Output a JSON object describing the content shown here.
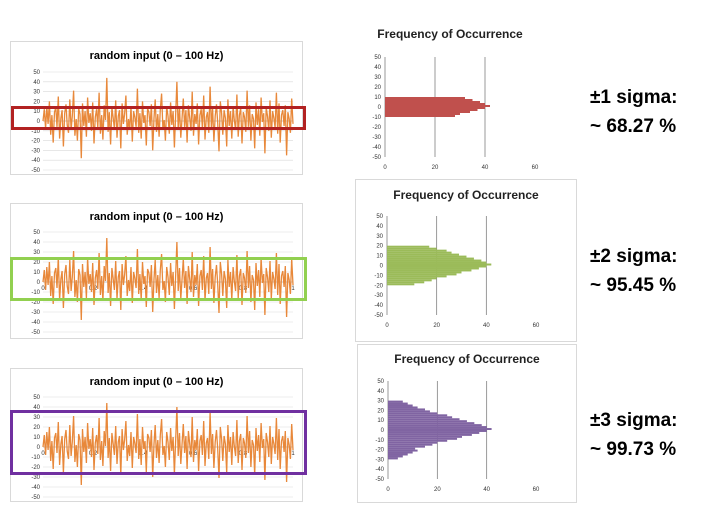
{
  "rows": [
    {
      "id": "r1",
      "sigma_line1": "±1 sigma:",
      "sigma_line2": "~ 68.27 %",
      "highlight_color": "#b22222",
      "hist_color": "#c0504d",
      "band": [
        -10,
        10
      ],
      "ts_xticks": [],
      "hist_title_y": 27
    },
    {
      "id": "r2",
      "sigma_line1": "±2 sigma:",
      "sigma_line2": "~ 95.45 %",
      "highlight_color": "#92d050",
      "hist_color": "#9bbb59",
      "band": [
        -20,
        20
      ],
      "ts_xticks": [
        "0",
        "0.2",
        "0.4",
        "0.6",
        "0.8",
        "1"
      ],
      "hist_title_y": 8
    },
    {
      "id": "r3",
      "sigma_line1": "±3 sigma:",
      "sigma_line2": "~ 99.73 %",
      "highlight_color": "#7030a0",
      "hist_color": "#8064a2",
      "band": [
        -30,
        30
      ],
      "ts_xticks": [
        "0",
        "0.2",
        "0.4",
        "0.6",
        "0.8",
        "1"
      ],
      "hist_title_y": 7
    }
  ],
  "ts_title": "random input (0 – 100 Hz)",
  "hist_title": "Frequency of Occurrence",
  "ts_color": "#e8883a",
  "chart_data": [
    {
      "type": "line",
      "title": "random input (0 – 100 Hz)",
      "xlim": [
        0,
        1
      ],
      "ylim": [
        -50,
        50
      ],
      "yticks": [
        50,
        40,
        30,
        20,
        10,
        0,
        -10,
        -20,
        -30,
        -40,
        -50
      ],
      "series": [
        {
          "values": [
            0,
            12,
            -8,
            15,
            -3,
            20,
            -14,
            6,
            -22,
            9,
            14,
            -6,
            25,
            -18,
            3,
            11,
            -26,
            8,
            17,
            -4,
            -12,
            22,
            -9,
            5,
            31,
            -15,
            2,
            -20,
            13,
            7,
            -38,
            18,
            -5,
            10,
            -16,
            24,
            -2,
            8,
            -10,
            19,
            -23,
            4,
            12,
            -7,
            29,
            -13,
            6,
            -19,
            16,
            1,
            44,
            -11,
            9,
            -24,
            14,
            3,
            -8,
            21,
            -17,
            5,
            11,
            -28,
            18,
            -3,
            7,
            26,
            -14,
            2,
            -9,
            15,
            -21,
            10,
            4,
            -6,
            33,
            -12,
            8,
            -18,
            20,
            -2,
            6,
            -25,
            13,
            9,
            -5,
            17,
            -30,
            3,
            22,
            -11,
            7,
            -16,
            12,
            28,
            -8,
            1,
            -20,
            15,
            5,
            -13,
            19,
            -4,
            10,
            -27,
            8,
            40,
            -9,
            14,
            -17,
            2,
            23,
            -6,
            11,
            -22,
            16,
            3,
            -10,
            30,
            -15,
            7,
            -3,
            18,
            -24,
            6,
            12,
            -8,
            26,
            -19,
            4,
            9,
            -12,
            35,
            -7,
            13,
            -21,
            5,
            17,
            -2,
            -31,
            20,
            8,
            -14,
            11,
            3,
            -26,
            22,
            -5,
            10,
            -18,
            15,
            1,
            -9,
            27,
            -16,
            6,
            13,
            -23,
            9,
            4,
            -11,
            31,
            -6,
            16,
            -20,
            7,
            2,
            -28,
            19,
            -4,
            12,
            -15,
            24,
            -1,
            8,
            -33,
            14,
            5,
            -10,
            21,
            -17,
            10,
            3,
            -7,
            29,
            -13,
            18,
            -22,
            6,
            11,
            -5,
            16,
            -35,
            9,
            2,
            -12,
            23,
            -3
          ]
        }
      ]
    },
    {
      "type": "bar",
      "orientation": "horizontal",
      "title": "Frequency of Occurrence",
      "xlim": [
        0,
        60
      ],
      "xticks": [
        0,
        20,
        40,
        60
      ],
      "ylim": [
        -50,
        50
      ],
      "yticks": [
        50,
        40,
        30,
        20,
        10,
        0,
        -10,
        -20,
        -30,
        -40,
        -50
      ],
      "bins_y": [
        -38,
        -36,
        -34,
        -32,
        -30,
        -28,
        -26,
        -24,
        -22,
        -20,
        -18,
        -16,
        -14,
        -12,
        -10,
        -8,
        -6,
        -4,
        -2,
        0,
        2,
        4,
        6,
        8,
        10,
        12,
        14,
        16,
        18,
        20,
        22,
        24,
        26,
        28,
        30,
        32,
        34,
        36
      ],
      "counts": [
        1,
        1,
        2,
        3,
        4,
        6,
        8,
        10,
        12,
        11,
        15,
        18,
        20,
        24,
        28,
        30,
        34,
        37,
        40,
        42,
        40,
        38,
        35,
        32,
        29,
        26,
        24,
        20,
        17,
        15,
        12,
        10,
        8,
        6,
        5,
        4,
        3,
        2
      ]
    }
  ]
}
